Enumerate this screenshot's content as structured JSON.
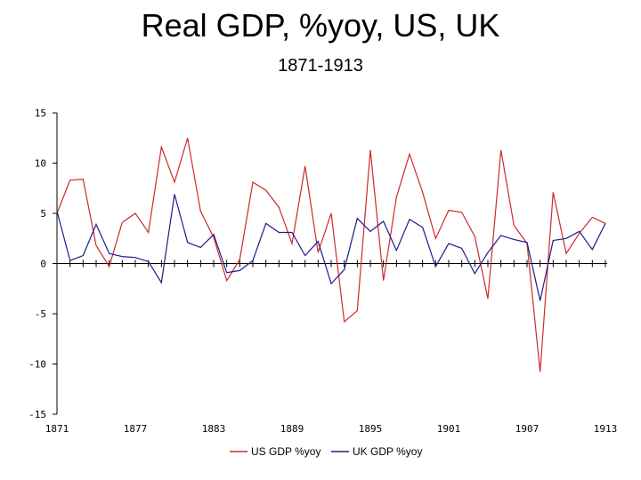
{
  "chart_data": {
    "type": "line",
    "title": "Real GDP, %yoy, US, UK",
    "subtitle": "1871-1913",
    "xlabel": "",
    "ylabel": "",
    "x": [
      1871,
      1872,
      1873,
      1874,
      1875,
      1876,
      1877,
      1878,
      1879,
      1880,
      1881,
      1882,
      1883,
      1884,
      1885,
      1886,
      1887,
      1888,
      1889,
      1890,
      1891,
      1892,
      1893,
      1894,
      1895,
      1896,
      1897,
      1898,
      1899,
      1900,
      1901,
      1902,
      1903,
      1904,
      1905,
      1906,
      1907,
      1908,
      1909,
      1910,
      1911,
      1912,
      1913
    ],
    "x_ticks": [
      1871,
      1877,
      1883,
      1889,
      1895,
      1901,
      1907,
      1913
    ],
    "x_tick_labels": [
      "1871",
      "1877",
      "1883",
      "1889",
      "1895",
      "1901",
      "1907",
      "1913"
    ],
    "ylim": [
      -15,
      15
    ],
    "y_ticks": [
      15,
      10,
      5,
      0,
      -5,
      -10,
      -15
    ],
    "y_tick_labels": [
      "15",
      "10",
      "5",
      "0",
      "-5",
      "-10",
      "-15"
    ],
    "grid": false,
    "legend_position": "bottom",
    "series": [
      {
        "name": "US GDP %yoy",
        "color": "#cc2a2a",
        "values": [
          5.0,
          8.3,
          8.4,
          1.8,
          -0.3,
          4.1,
          5.0,
          3.1,
          11.6,
          8.1,
          12.5,
          5.2,
          2.6,
          -1.7,
          0.4,
          8.1,
          7.3,
          5.6,
          2.0,
          9.7,
          1.1,
          5.0,
          -5.8,
          -4.7,
          11.3,
          -1.7,
          6.6,
          10.9,
          7.1,
          2.5,
          5.3,
          5.1,
          2.7,
          -3.5,
          11.3,
          3.8,
          2.0,
          -10.8,
          7.1,
          1.0,
          3.0,
          4.6,
          4.0
        ]
      },
      {
        "name": "UK GDP %yoy",
        "color": "#1c1c8c",
        "values": [
          5.2,
          0.3,
          0.8,
          3.9,
          1.0,
          0.7,
          0.6,
          0.2,
          -1.9,
          6.9,
          2.1,
          1.6,
          2.9,
          -0.9,
          -0.7,
          0.3,
          4.0,
          3.1,
          3.1,
          0.8,
          2.2,
          -2.0,
          -0.6,
          4.5,
          3.2,
          4.2,
          1.3,
          4.4,
          3.6,
          -0.3,
          2.0,
          1.5,
          -1.0,
          1.1,
          2.8,
          2.4,
          2.1,
          -3.7,
          2.3,
          2.5,
          3.2,
          1.4,
          4.0
        ]
      }
    ]
  }
}
